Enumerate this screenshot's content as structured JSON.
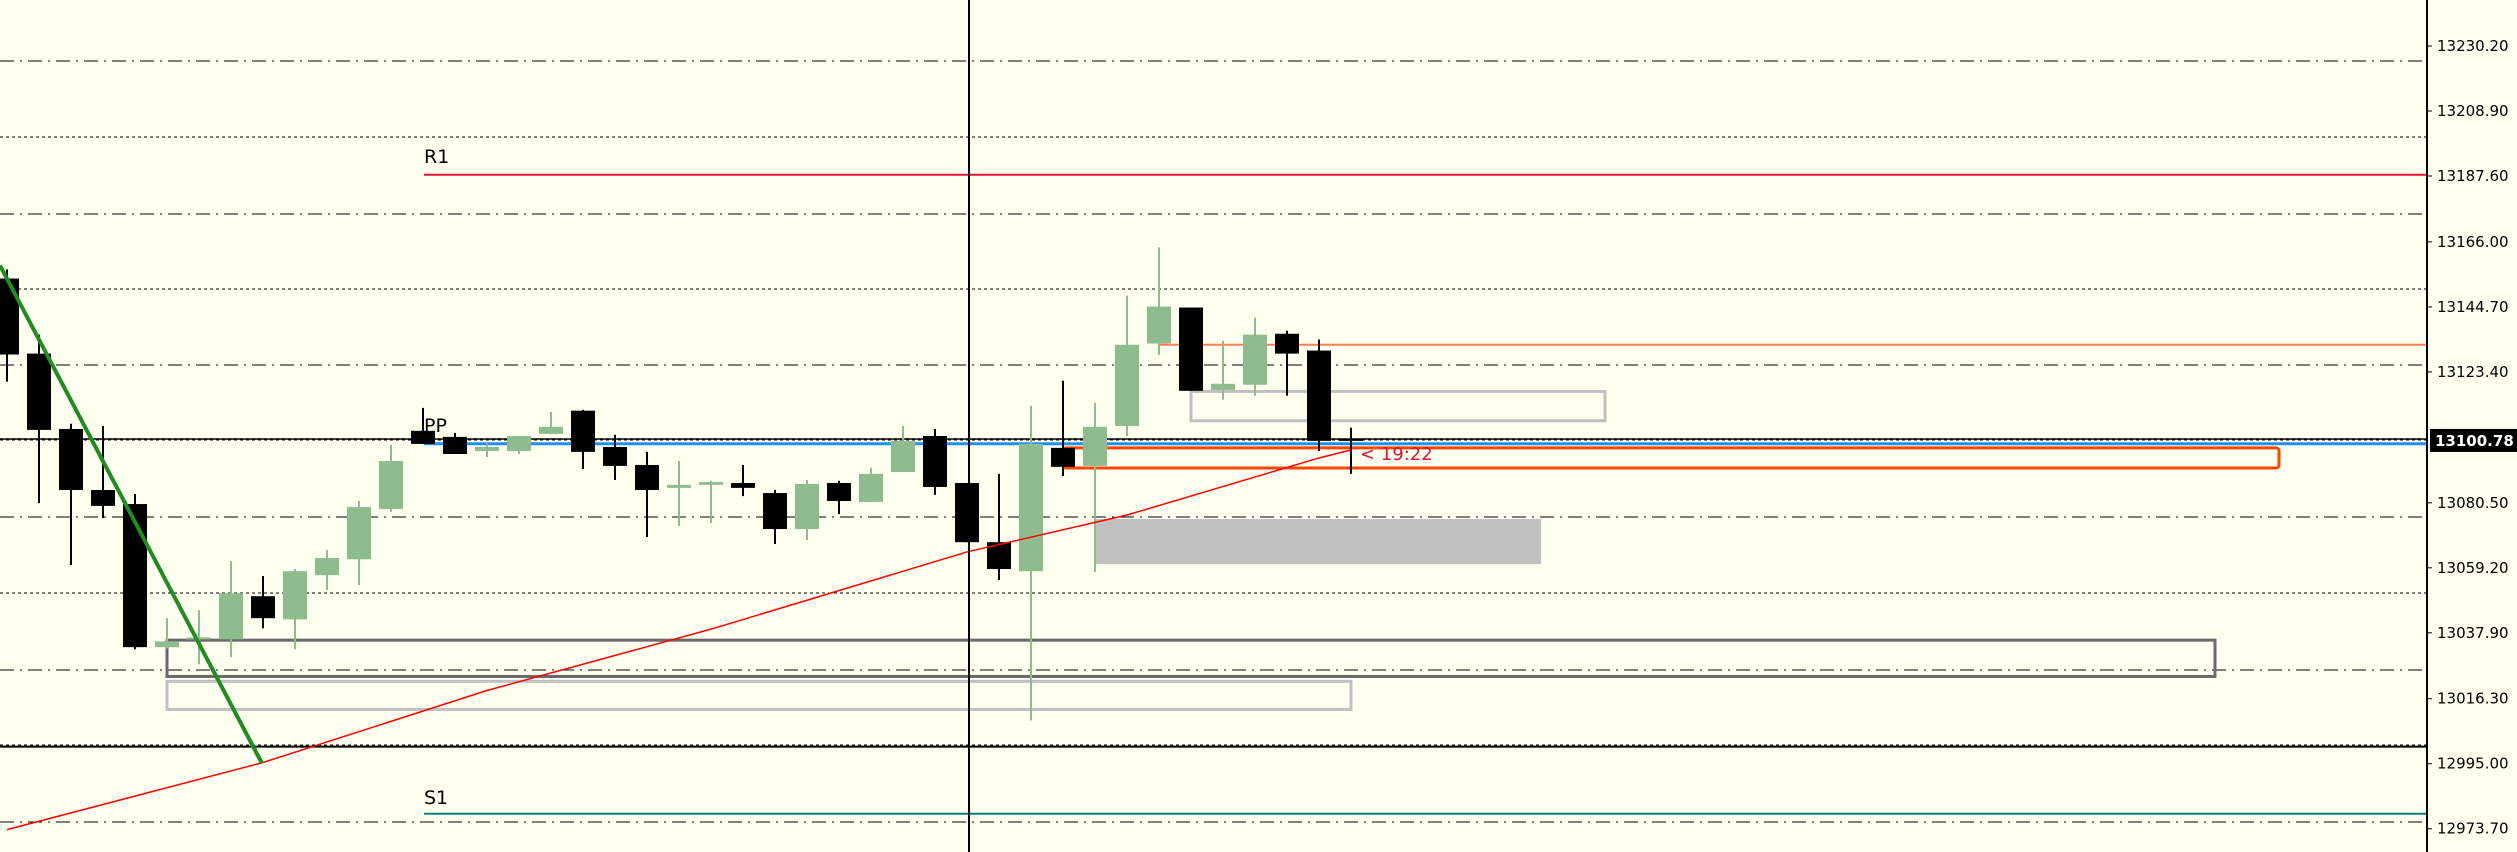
{
  "chart_data": {
    "type": "candlestick",
    "y_axis": {
      "ticks": [
        "13230.20",
        "13208.90",
        "13187.60",
        "13166.00",
        "13144.70",
        "13123.40",
        "13080.50",
        "13059.20",
        "13037.90",
        "13016.30",
        "12995.00",
        "12973.70"
      ],
      "range": [
        12970,
        13245
      ],
      "current_price_label": "13100.78",
      "current_price": 13100.78
    },
    "grid": true,
    "colors": {
      "background": "#fffff0",
      "bull": "#8fbc8f",
      "bear": "#000000",
      "r1": "#dc143c",
      "pp": "#1e90ff",
      "s1": "#008080",
      "ma": "#ff0000",
      "trend": "#228b22",
      "resistance": "#ff7f50",
      "zone_red": "#ff4500",
      "zone_gray": "#c0c0c0",
      "zone_dark": "#696969"
    },
    "candles": [
      [
        13154.0,
        13157.0,
        13120.2,
        13129.1
      ],
      [
        13129.4,
        13135.6,
        13080.4,
        13104.4
      ],
      [
        13104.7,
        13106.4,
        13060.1,
        13084.7
      ],
      [
        13084.7,
        13105.7,
        13075.5,
        13079.5
      ],
      [
        13080.1,
        13083.4,
        13032.5,
        13033.2
      ],
      [
        13033.2,
        13042.7,
        13032.8,
        13035.1
      ],
      [
        13035.8,
        13045.3,
        13027.6,
        13036.4
      ],
      [
        13035.8,
        13061.4,
        13029.9,
        13050.9
      ],
      [
        13049.9,
        13056.5,
        13039.4,
        13042.7
      ],
      [
        13042.3,
        13058.8,
        13032.5,
        13058.1
      ],
      [
        13056.8,
        13065.0,
        13051.9,
        13062.4
      ],
      [
        13062.0,
        13081.1,
        13053.5,
        13079.1
      ],
      [
        13078.5,
        13099.5,
        13077.5,
        13094.2
      ],
      [
        13104.1,
        13111.6,
        13099.8,
        13099.8
      ],
      [
        13102.1,
        13103.4,
        13096.5,
        13096.5
      ],
      [
        13097.5,
        13100.1,
        13095.5,
        13098.8
      ],
      [
        13097.5,
        13102.4,
        13096.5,
        13102.4
      ],
      [
        13103.1,
        13110.3,
        13103.1,
        13105.4
      ],
      [
        13110.7,
        13111.0,
        13091.6,
        13097.2
      ],
      [
        13098.8,
        13102.8,
        13088.0,
        13092.6
      ],
      [
        13092.9,
        13097.2,
        13069.3,
        13084.7
      ],
      [
        13085.4,
        13094.2,
        13072.9,
        13086.4
      ],
      [
        13086.4,
        13087.7,
        13073.9,
        13087.3
      ],
      [
        13087.0,
        13092.9,
        13082.7,
        13085.4
      ],
      [
        13083.7,
        13084.7,
        13067.0,
        13071.9
      ],
      [
        13071.9,
        13088.0,
        13068.3,
        13086.7
      ],
      [
        13087.0,
        13087.7,
        13076.8,
        13081.1
      ],
      [
        13080.8,
        13092.0,
        13080.8,
        13090.0
      ],
      [
        13090.6,
        13105.7,
        13090.6,
        13100.8
      ],
      [
        13102.4,
        13104.7,
        13083.1,
        13085.7
      ],
      [
        13087.0,
        13087.0,
        13067.6,
        13067.6
      ],
      [
        13067.6,
        13090.0,
        13055.2,
        13058.8
      ],
      [
        13058.1,
        13112.3,
        13009.2,
        13099.8
      ],
      [
        13098.5,
        13120.5,
        13089.3,
        13092.3
      ],
      [
        13092.6,
        13113.3,
        13057.8,
        13105.4
      ],
      [
        13105.7,
        13148.4,
        13102.4,
        13132.3
      ],
      [
        13132.7,
        13164.2,
        13129.0,
        13144.8
      ],
      [
        13144.5,
        13144.5,
        13117.2,
        13117.2
      ],
      [
        13117.5,
        13133.6,
        13114.3,
        13119.5
      ],
      [
        13119.2,
        13141.2,
        13115.6,
        13135.6
      ],
      [
        13135.9,
        13136.9,
        13115.6,
        13129.4
      ],
      [
        13130.4,
        13134.0,
        13097.5,
        13100.8
      ],
      [
        13101.5,
        13105.1,
        13090.0,
        13100.8
      ]
    ],
    "levels": {
      "r1": {
        "label": "R1",
        "price": 13188.0
      },
      "pp": {
        "label": "PP",
        "price": 13100.2
      },
      "s1": {
        "label": "S1",
        "price": 12978.6
      },
      "resistance_line": 13132.3,
      "support_line": 13000.6
    },
    "zones": [
      {
        "name": "zone-upper-gray",
        "top": 13117.0,
        "bottom": 13107.4,
        "style": "outline-light"
      },
      {
        "name": "zone-red",
        "top": 13098.5,
        "bottom": 13091.9,
        "style": "outline-red"
      },
      {
        "name": "zone-gray-fill",
        "top": 13075.2,
        "bottom": 13060.4,
        "style": "fill"
      },
      {
        "name": "zone-dark",
        "top": 13035.5,
        "bottom": 13023.6,
        "style": "outline-dark"
      },
      {
        "name": "zone-lower-gray",
        "top": 13022.0,
        "bottom": 13012.8,
        "style": "outline-light"
      }
    ],
    "moving_average": [
      [
        0,
        12973.4
      ],
      [
        8,
        12995.4
      ],
      [
        15,
        13019.0
      ],
      [
        22,
        13039.1
      ],
      [
        30,
        13064.4
      ],
      [
        35,
        13076.5
      ],
      [
        41,
        13095.2
      ],
      [
        42,
        13097.8
      ]
    ],
    "trendline": [
      [
        -0.22,
        13158.3
      ],
      [
        7.97,
        12995.1
      ]
    ],
    "bar_timer": "< 19:22"
  }
}
